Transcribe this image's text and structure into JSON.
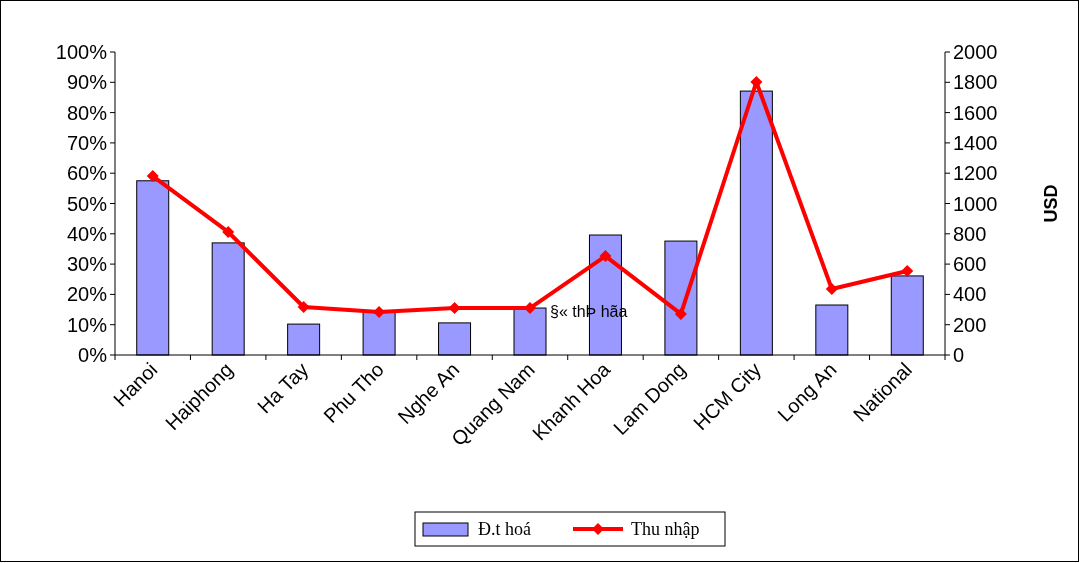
{
  "chart_data": {
    "type": "bar",
    "categories": [
      "Hanoi",
      "Haiphong",
      "Ha Tay",
      "Phu Tho",
      "Nghe An",
      "Quang Nam",
      "Khanh Hoa",
      "Lam Dong",
      "HCM City",
      "Long An",
      "National"
    ],
    "series": [
      {
        "name": "Đ.t hoá",
        "color": "#9999ff",
        "values": [
          57.5,
          37,
          10.2,
          14.2,
          10.6,
          15.5,
          39.6,
          37.6,
          87.1,
          16.5,
          26.1
        ]
      },
      {
        "name": "Thu nhập",
        "type": "line",
        "axis": "y2",
        "color": "#ff0000",
        "marker": "diamond",
        "values": [
          1181,
          812,
          317,
          284,
          310,
          310,
          653,
          271,
          1802,
          436,
          554
        ]
      }
    ],
    "ylim": [
      0,
      100
    ],
    "yticks": [
      {
        "value": 0,
        "label": "0%"
      },
      {
        "value": 10,
        "label": "10%"
      },
      {
        "value": 20,
        "label": "20%"
      },
      {
        "value": 30,
        "label": "30%"
      },
      {
        "value": 40,
        "label": "40%"
      },
      {
        "value": 50,
        "label": "50%"
      },
      {
        "value": 60,
        "label": "60%"
      },
      {
        "value": 70,
        "label": "70%"
      },
      {
        "value": 80,
        "label": "80%"
      },
      {
        "value": 90,
        "label": "90%"
      },
      {
        "value": 100,
        "label": "100%"
      }
    ],
    "y2lim": [
      0,
      2000
    ],
    "y2ticks": [
      0,
      200,
      400,
      600,
      800,
      1000,
      1200,
      1400,
      1600,
      1800,
      2000
    ],
    "y2label": "USD",
    "annotations": [
      "§« thÞ hãa"
    ],
    "legend": "bottom",
    "grid": false
  }
}
